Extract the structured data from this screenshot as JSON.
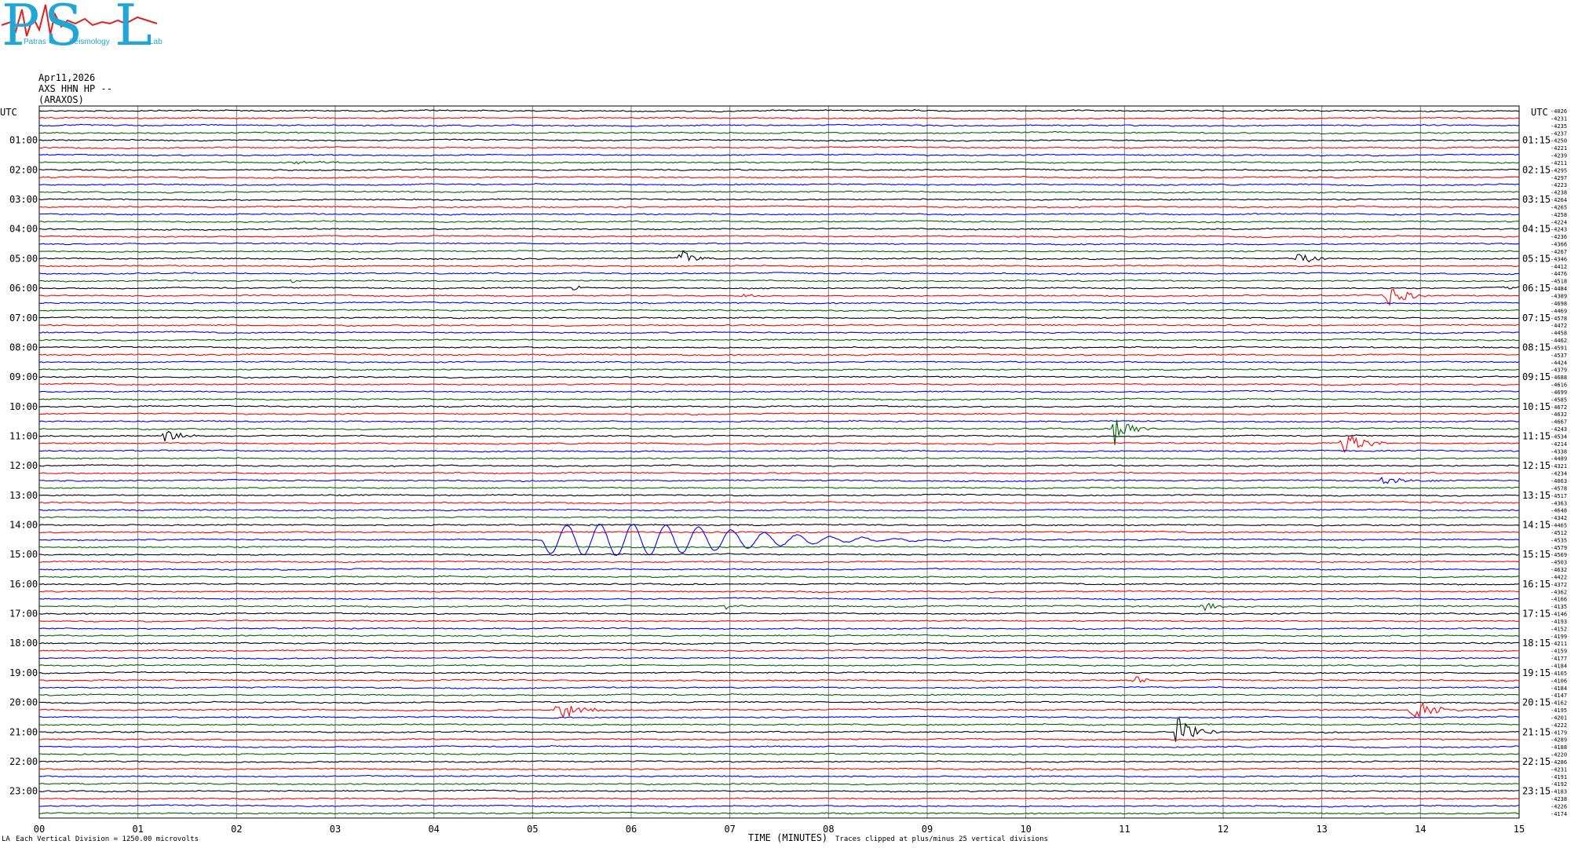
{
  "logo": {
    "letters": [
      "P",
      "S",
      "L"
    ],
    "words": [
      "Patras",
      "Seismology",
      "Lab"
    ]
  },
  "header": {
    "date": "Apr11,2026",
    "channel": "AXS HHN HP --",
    "station": "(ARAXOS)"
  },
  "axis_labels": {
    "left_title": "UTC",
    "right_title": "UTC",
    "xlabel": "TIME (MINUTES)"
  },
  "footer": {
    "corner": "LA",
    "vertical_division": "Each Vertical Division = 1250.00 microvolts",
    "clip_note": "Traces clipped at plus/minus 25 vertical divisions"
  },
  "chart_data": {
    "type": "line",
    "title": "",
    "xlabel": "TIME (MINUTES)",
    "xlim": [
      0,
      15
    ],
    "x_ticks": [
      "00",
      "01",
      "02",
      "03",
      "04",
      "05",
      "06",
      "07",
      "08",
      "09",
      "10",
      "11",
      "12",
      "13",
      "14",
      "15"
    ],
    "left_hour_labels": [
      "01:00",
      "02:00",
      "03:00",
      "04:00",
      "05:00",
      "06:00",
      "07:00",
      "08:00",
      "09:00",
      "10:00",
      "11:00",
      "12:00",
      "13:00",
      "14:00",
      "15:00",
      "16:00",
      "17:00",
      "18:00",
      "19:00",
      "20:00",
      "21:00",
      "22:00",
      "23:00"
    ],
    "right_hour_labels": [
      "01:15",
      "02:15",
      "03:15",
      "04:15",
      "05:15",
      "06:15",
      "07:15",
      "08:15",
      "09:15",
      "10:15",
      "11:15",
      "12:15",
      "13:15",
      "14:15",
      "15:15",
      "16:15",
      "17:15",
      "18:15",
      "19:15",
      "20:15",
      "21:15",
      "22:15",
      "23:15"
    ],
    "trace_colors": [
      "#000000",
      "#ff0000",
      "#0000ff",
      "#006400"
    ],
    "trace_count": 96,
    "minutes_per_trace": 15,
    "grid": true,
    "right_offsets": [
      "4026",
      "4231",
      "4235",
      "4237",
      "4250",
      "4221",
      "4239",
      "4211",
      "4295",
      "4297",
      "4223",
      "4238",
      "4264",
      "4265",
      "4258",
      "4224",
      "4243",
      "4236",
      "4366",
      "4267",
      "4346",
      "4412",
      "4476",
      "4518",
      "4484",
      "4389",
      "4698",
      "4469",
      "4578",
      "4472",
      "4458",
      "4462",
      "4591",
      "4537",
      "4424",
      "4379",
      "4688",
      "4616",
      "4699",
      "4585",
      "4672",
      "4632",
      "4667",
      "4243",
      "4534",
      "4214",
      "4338",
      "4489",
      "4321",
      "4234",
      "4063",
      "4578",
      "4517",
      "4363",
      "4648",
      "4342",
      "4465",
      "4512",
      "4535",
      "4579",
      "4569",
      "4503",
      "4632",
      "4422",
      "4372",
      "4362",
      "4166",
      "4135",
      "4146",
      "4193",
      "4152",
      "4199",
      "4211",
      "4159",
      "4177",
      "4184",
      "4165",
      "4106",
      "4184",
      "4147",
      "4162",
      "4195",
      "4201",
      "4222",
      "4179",
      "4289",
      "4188",
      "4220",
      "4286",
      "4231",
      "4191",
      "4192",
      "4183",
      "4238",
      "4226",
      "4174"
    ],
    "events": [
      {
        "trace": 4,
        "minute": 1.5,
        "amp": 0.6,
        "dur": 2.2
      },
      {
        "trace": 7,
        "minute": 2.5,
        "amp": 2.5,
        "dur": 1.2
      },
      {
        "trace": 20,
        "minute": 6.5,
        "amp": 14,
        "dur": 0.35
      },
      {
        "trace": 20,
        "minute": 12.75,
        "amp": 11,
        "dur": 0.35
      },
      {
        "trace": 23,
        "minute": 2.55,
        "amp": 4,
        "dur": 0.2
      },
      {
        "trace": 24,
        "minute": 5.4,
        "amp": 5,
        "dur": 0.25
      },
      {
        "trace": 24,
        "minute": 14.85,
        "amp": 5,
        "dur": 0.2
      },
      {
        "trace": 25,
        "minute": 7.15,
        "amp": 6,
        "dur": 0.25
      },
      {
        "trace": 25,
        "minute": 13.65,
        "amp": 18,
        "dur": 0.45
      },
      {
        "trace": 44,
        "minute": 1.25,
        "amp": 14,
        "dur": 0.35
      },
      {
        "trace": 43,
        "minute": 10.9,
        "amp": 22,
        "dur": 0.4
      },
      {
        "trace": 45,
        "minute": 13.2,
        "amp": 22,
        "dur": 0.45
      },
      {
        "trace": 50,
        "minute": 13.6,
        "amp": 5,
        "dur": 0.8
      },
      {
        "trace": 58,
        "minute": 5.1,
        "amp": 18,
        "dur": 7.5,
        "surface": true
      },
      {
        "trace": 67,
        "minute": 6.95,
        "amp": 5,
        "dur": 0.3
      },
      {
        "trace": 67,
        "minute": 11.8,
        "amp": 7,
        "dur": 0.3
      },
      {
        "trace": 77,
        "minute": 11.1,
        "amp": 6,
        "dur": 0.3
      },
      {
        "trace": 81,
        "minute": 5.25,
        "amp": 16,
        "dur": 0.5
      },
      {
        "trace": 81,
        "minute": 13.9,
        "amp": 18,
        "dur": 0.55
      },
      {
        "trace": 84,
        "minute": 11.5,
        "amp": 26,
        "dur": 0.45
      },
      {
        "trace": 89,
        "minute": 10.0,
        "amp": 3,
        "dur": 0.6
      }
    ]
  }
}
